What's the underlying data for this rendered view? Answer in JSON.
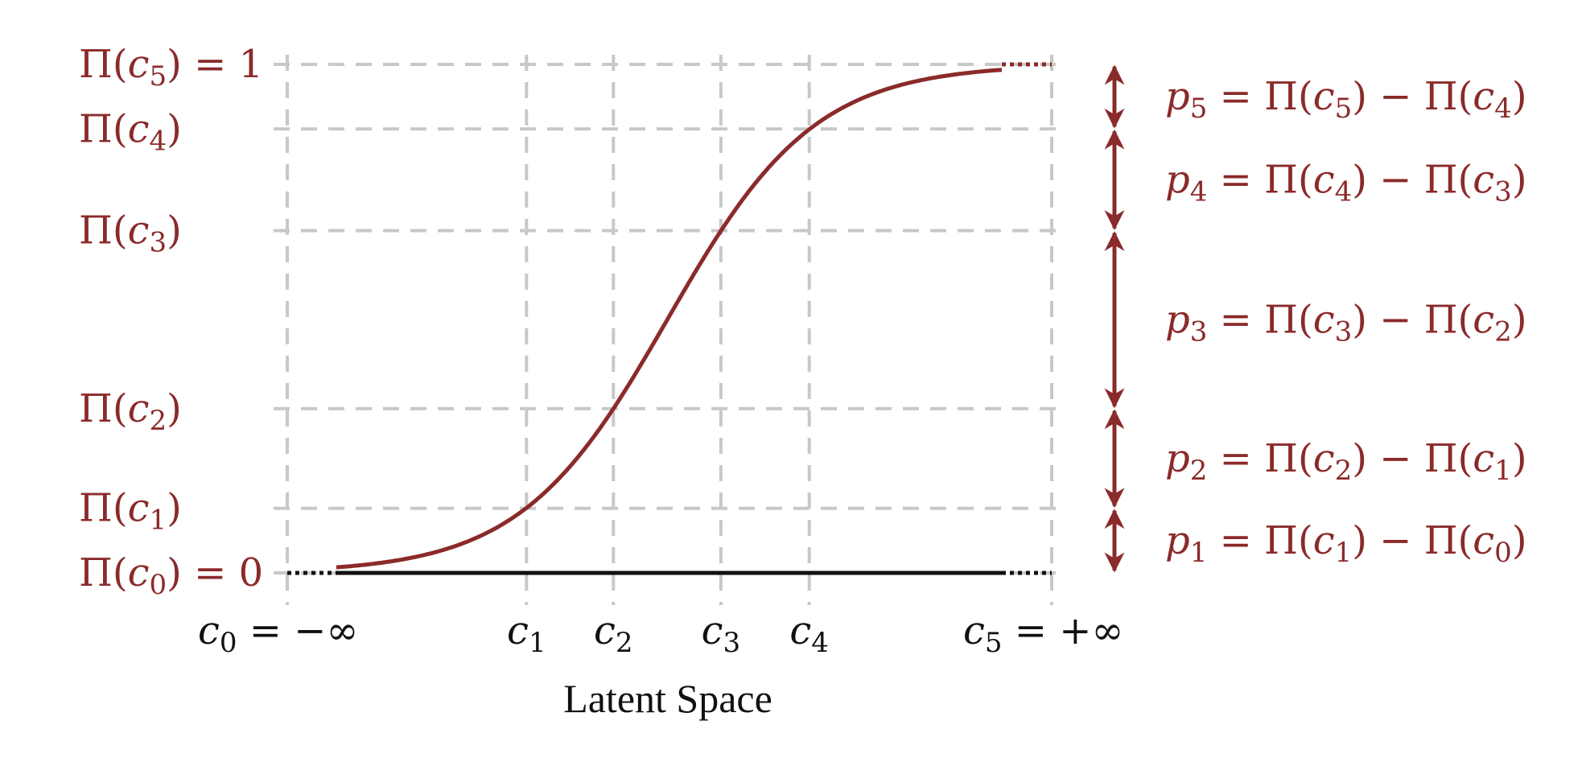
{
  "colors": {
    "curve": "#8b2a2a",
    "axis": "#111111",
    "grid": "#c8c8c8",
    "label": "#8b2a2a"
  },
  "chart_data": {
    "type": "line",
    "description_curve": "logistic",
    "xlabel": "Latent Space",
    "y_tick_labels": [
      {
        "key": "c5",
        "func": "Π",
        "arg": "c",
        "sub": "5",
        "suffix": " = 1",
        "value": 1.0
      },
      {
        "key": "c4",
        "func": "Π",
        "arg": "c",
        "sub": "4",
        "suffix": "",
        "value": 0.873
      },
      {
        "key": "c3",
        "func": "Π",
        "arg": "c",
        "sub": "3",
        "suffix": "",
        "value": 0.673
      },
      {
        "key": "c2",
        "func": "Π",
        "arg": "c",
        "sub": "2",
        "suffix": "",
        "value": 0.323
      },
      {
        "key": "c1",
        "func": "Π",
        "arg": "c",
        "sub": "1",
        "suffix": "",
        "value": 0.127
      },
      {
        "key": "c0",
        "func": "Π",
        "arg": "c",
        "sub": "0",
        "suffix": " = 0",
        "value": 0.0
      }
    ],
    "x_tick_labels": [
      {
        "arg": "c",
        "sub": "0",
        "suffix": " = −∞"
      },
      {
        "arg": "c",
        "sub": "1",
        "suffix": ""
      },
      {
        "arg": "c",
        "sub": "2",
        "suffix": ""
      },
      {
        "arg": "c",
        "sub": "3",
        "suffix": ""
      },
      {
        "arg": "c",
        "sub": "4",
        "suffix": ""
      },
      {
        "arg": "c",
        "sub": "5",
        "suffix": " = +∞"
      }
    ],
    "thresholds_latent": [
      -1.92,
      -0.74,
      0.72,
      1.92
    ],
    "probability_labels": [
      {
        "p": "p",
        "psub": "5",
        "text_a": " = Π(",
        "a": "c",
        "asub": "5",
        "text_b": ") − Π(",
        "b": "c",
        "bsub": "4",
        "text_c": ")",
        "from": 0.873,
        "to": 1.0
      },
      {
        "p": "p",
        "psub": "4",
        "text_a": " = Π(",
        "a": "c",
        "asub": "4",
        "text_b": ") − Π(",
        "b": "c",
        "bsub": "3",
        "text_c": ")",
        "from": 0.673,
        "to": 0.873
      },
      {
        "p": "p",
        "psub": "3",
        "text_a": " = Π(",
        "a": "c",
        "asub": "3",
        "text_b": ") − Π(",
        "b": "c",
        "bsub": "2",
        "text_c": ")",
        "from": 0.323,
        "to": 0.673
      },
      {
        "p": "p",
        "psub": "2",
        "text_a": " = Π(",
        "a": "c",
        "asub": "2",
        "text_b": ") − Π(",
        "b": "c",
        "bsub": "1",
        "text_c": ")",
        "from": 0.127,
        "to": 0.323
      },
      {
        "p": "p",
        "psub": "1",
        "text_a": " = Π(",
        "a": "c",
        "asub": "1",
        "text_b": ") − Π(",
        "b": "c",
        "bsub": "0",
        "text_c": ")",
        "from": 0.0,
        "to": 0.127
      }
    ]
  }
}
